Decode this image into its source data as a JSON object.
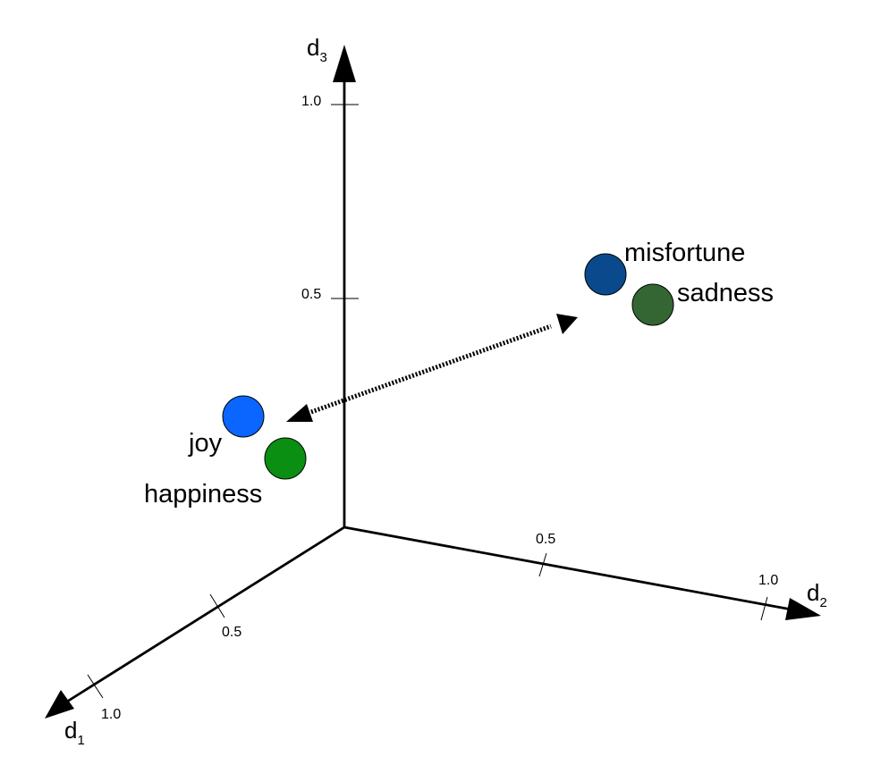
{
  "axes": {
    "d1": {
      "label": "d",
      "subscript": "1",
      "ticks": [
        "0.5",
        "1.0"
      ]
    },
    "d2": {
      "label": "d",
      "subscript": "2",
      "ticks": [
        "0.5",
        "1.0"
      ]
    },
    "d3": {
      "label": "d",
      "subscript": "3",
      "ticks": [
        "0.5",
        "1.0"
      ]
    }
  },
  "words": [
    {
      "label": "joy",
      "color": "#0a66ff"
    },
    {
      "label": "happiness",
      "color": "#0a8f12"
    },
    {
      "label": "misfortune",
      "color": "#0a4a8c"
    },
    {
      "label": "sadness",
      "color": "#336633"
    }
  ],
  "relation": {
    "style": "dotted",
    "direction": "both"
  }
}
